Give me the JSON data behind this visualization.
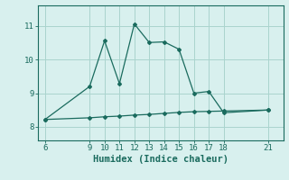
{
  "line1_x": [
    6,
    9,
    10,
    11,
    12,
    13,
    14,
    15,
    16,
    17,
    18,
    21
  ],
  "line1_y": [
    8.22,
    9.2,
    10.55,
    9.28,
    11.05,
    10.5,
    10.52,
    10.3,
    9.0,
    9.05,
    8.42,
    8.5
  ],
  "line2_x": [
    6,
    9,
    10,
    11,
    12,
    13,
    14,
    15,
    16,
    17,
    18,
    21
  ],
  "line2_y": [
    8.22,
    8.27,
    8.3,
    8.32,
    8.35,
    8.37,
    8.4,
    8.43,
    8.45,
    8.46,
    8.47,
    8.5
  ],
  "line_color": "#1a6b5e",
  "bg_color": "#d8f0ee",
  "grid_color": "#aad4ce",
  "xlabel": "Humidex (Indice chaleur)",
  "xticks": [
    6,
    9,
    10,
    11,
    12,
    13,
    14,
    15,
    16,
    17,
    18,
    21
  ],
  "yticks": [
    8,
    9,
    10,
    11
  ],
  "xlim": [
    5.5,
    22.0
  ],
  "ylim": [
    7.6,
    11.6
  ],
  "xlabel_fontsize": 7.5,
  "tick_fontsize": 6.5,
  "marker": "D",
  "markersize": 2.0,
  "linewidth": 0.9
}
